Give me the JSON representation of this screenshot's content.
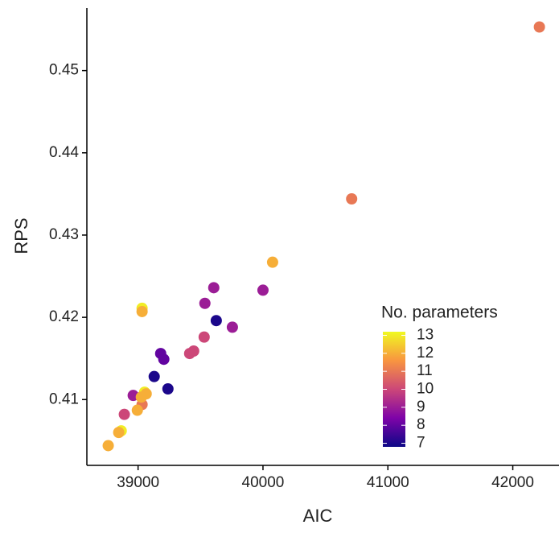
{
  "chart_data": {
    "type": "scatter",
    "x_label": "AIC",
    "y_label": "RPS",
    "x": [
      42213,
      40710,
      40077,
      39032,
      39032,
      39606,
      40000,
      39535,
      39626,
      39755,
      39529,
      39445,
      39413,
      39181,
      39206,
      39129,
      39239,
      39052,
      39065,
      38961,
      39032,
      39026,
      38994,
      38890,
      38865,
      38845,
      38761
    ],
    "values": [
      0.4553,
      0.4344,
      0.4267,
      0.4211,
      0.4207,
      0.4236,
      0.4233,
      0.4217,
      0.4196,
      0.4188,
      0.4176,
      0.4159,
      0.4156,
      0.4156,
      0.4149,
      0.4128,
      0.4113,
      0.4109,
      0.4107,
      0.4105,
      0.4094,
      0.4103,
      0.4087,
      0.4082,
      0.4062,
      0.406,
      0.4044
    ],
    "parameters": [
      11,
      11,
      12,
      13,
      12,
      9,
      9,
      9,
      7,
      9,
      10,
      10,
      10,
      8,
      8,
      7,
      7,
      13,
      12,
      9,
      11,
      12,
      12,
      10,
      13,
      12,
      12
    ],
    "xlim": [
      38590,
      42370
    ],
    "xticks": [
      39000,
      40000,
      41000,
      42000
    ],
    "ylim": [
      0.402,
      0.4576
    ],
    "yticks": [
      0.41,
      0.42,
      0.43,
      0.44,
      0.45
    ],
    "colorbar": {
      "title": "No. parameters",
      "colormap": "plasma",
      "clim": [
        6.8,
        13.2
      ],
      "ticks": [
        7,
        8,
        9,
        10,
        11,
        12,
        13
      ]
    }
  }
}
